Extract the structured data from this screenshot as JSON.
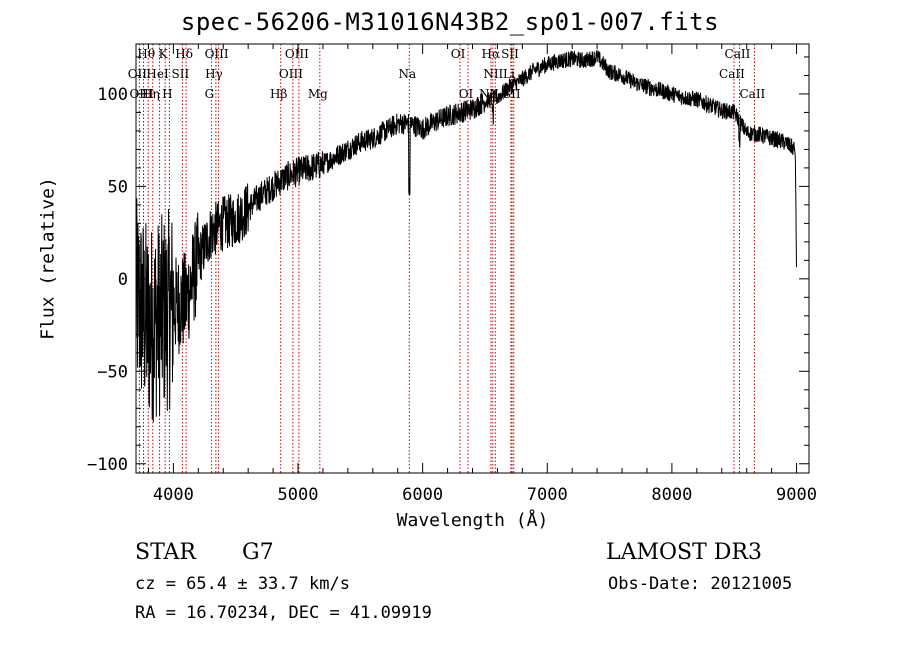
{
  "chart_data": {
    "type": "line",
    "title": "spec-56206-M31016N43B2_sp01-007.fits",
    "xlabel": "Wavelength (Å)",
    "ylabel": "Flux (relative)",
    "xlim": [
      3700,
      9100
    ],
    "ylim": [
      -105,
      127
    ],
    "x_ticks": [
      4000,
      5000,
      6000,
      7000,
      8000,
      9000
    ],
    "x_tick_labels": [
      "4000",
      "5000",
      "6000",
      "7000",
      "8000",
      "9000"
    ],
    "y_ticks": [
      -100,
      -50,
      0,
      50,
      100
    ],
    "y_tick_labels": [
      "−100",
      "−50",
      "0",
      "50",
      "100"
    ],
    "spectrum_envelope": {
      "x": [
        3700,
        3800,
        3900,
        4000,
        4100,
        4200,
        4300,
        4400,
        4500,
        4600,
        4700,
        4800,
        4900,
        5000,
        5100,
        5200,
        5300,
        5400,
        5500,
        5600,
        5700,
        5800,
        5900,
        6000,
        6100,
        6200,
        6300,
        6400,
        6500,
        6600,
        6700,
        6800,
        6900,
        7000,
        7100,
        7200,
        7300,
        7400,
        7500,
        7600,
        7700,
        7800,
        7900,
        8000,
        8100,
        8200,
        8300,
        8400,
        8500,
        8600,
        8700,
        8800,
        8900,
        8990,
        9000
      ],
      "y": [
        -10,
        -25,
        -20,
        -15,
        -12,
        10,
        25,
        30,
        32,
        38,
        45,
        50,
        55,
        58,
        60,
        62,
        66,
        70,
        74,
        76,
        80,
        84,
        84,
        81,
        85,
        88,
        90,
        92,
        96,
        98,
        104,
        108,
        113,
        116,
        118,
        119,
        118,
        120,
        112,
        110,
        106,
        104,
        102,
        100,
        98,
        97,
        94,
        91,
        90,
        79,
        78,
        76,
        74,
        70,
        5
      ]
    },
    "line_markers": [
      {
        "name": "Hθ",
        "wavelength": 3798
      },
      {
        "name": "OII",
        "wavelength": 3727
      },
      {
        "name": "OIII",
        "wavelength": 3760
      },
      {
        "name": "K",
        "wavelength": 3934
      },
      {
        "name": "HeI",
        "wavelength": 3889
      },
      {
        "name": "Hη",
        "wavelength": 3835
      },
      {
        "name": "Hδ",
        "wavelength": 4102
      },
      {
        "name": "SII",
        "wavelength": 4072
      },
      {
        "name": "H",
        "wavelength": 3968
      },
      {
        "name": "OIII",
        "wavelength": 4363
      },
      {
        "name": "Hγ",
        "wavelength": 4341
      },
      {
        "name": "G",
        "wavelength": 4305
      },
      {
        "name": "OIII",
        "wavelength": 5007
      },
      {
        "name": "OIII",
        "wavelength": 4959
      },
      {
        "name": "Hβ",
        "wavelength": 4861
      },
      {
        "name": "Mg",
        "wavelength": 5175
      },
      {
        "name": "Na",
        "wavelength": 5893
      },
      {
        "name": "OI",
        "wavelength": 6300
      },
      {
        "name": "OI",
        "wavelength": 6364
      },
      {
        "name": "Hα",
        "wavelength": 6563
      },
      {
        "name": "SII",
        "wavelength": 6717
      },
      {
        "name": "NII",
        "wavelength": 6583
      },
      {
        "name": "Li",
        "wavelength": 6708
      },
      {
        "name": "NII",
        "wavelength": 6548
      },
      {
        "name": "SII",
        "wavelength": 6731
      },
      {
        "name": "CaII",
        "wavelength": 8542
      },
      {
        "name": "CaII",
        "wavelength": 8498
      },
      {
        "name": "CaII",
        "wavelength": 8662
      }
    ],
    "colors": {
      "spectrum": "#000000",
      "markers": "#cc0000",
      "axes": "#000000"
    }
  },
  "info": {
    "object_type": "STAR",
    "subclass": "G7",
    "survey": "LAMOST DR3",
    "redshift": "cz = 65.4 ± 33.7 km/s",
    "obs_date": "Obs-Date: 20121005",
    "coords": "RA =  16.70234, DEC =  41.09919"
  }
}
